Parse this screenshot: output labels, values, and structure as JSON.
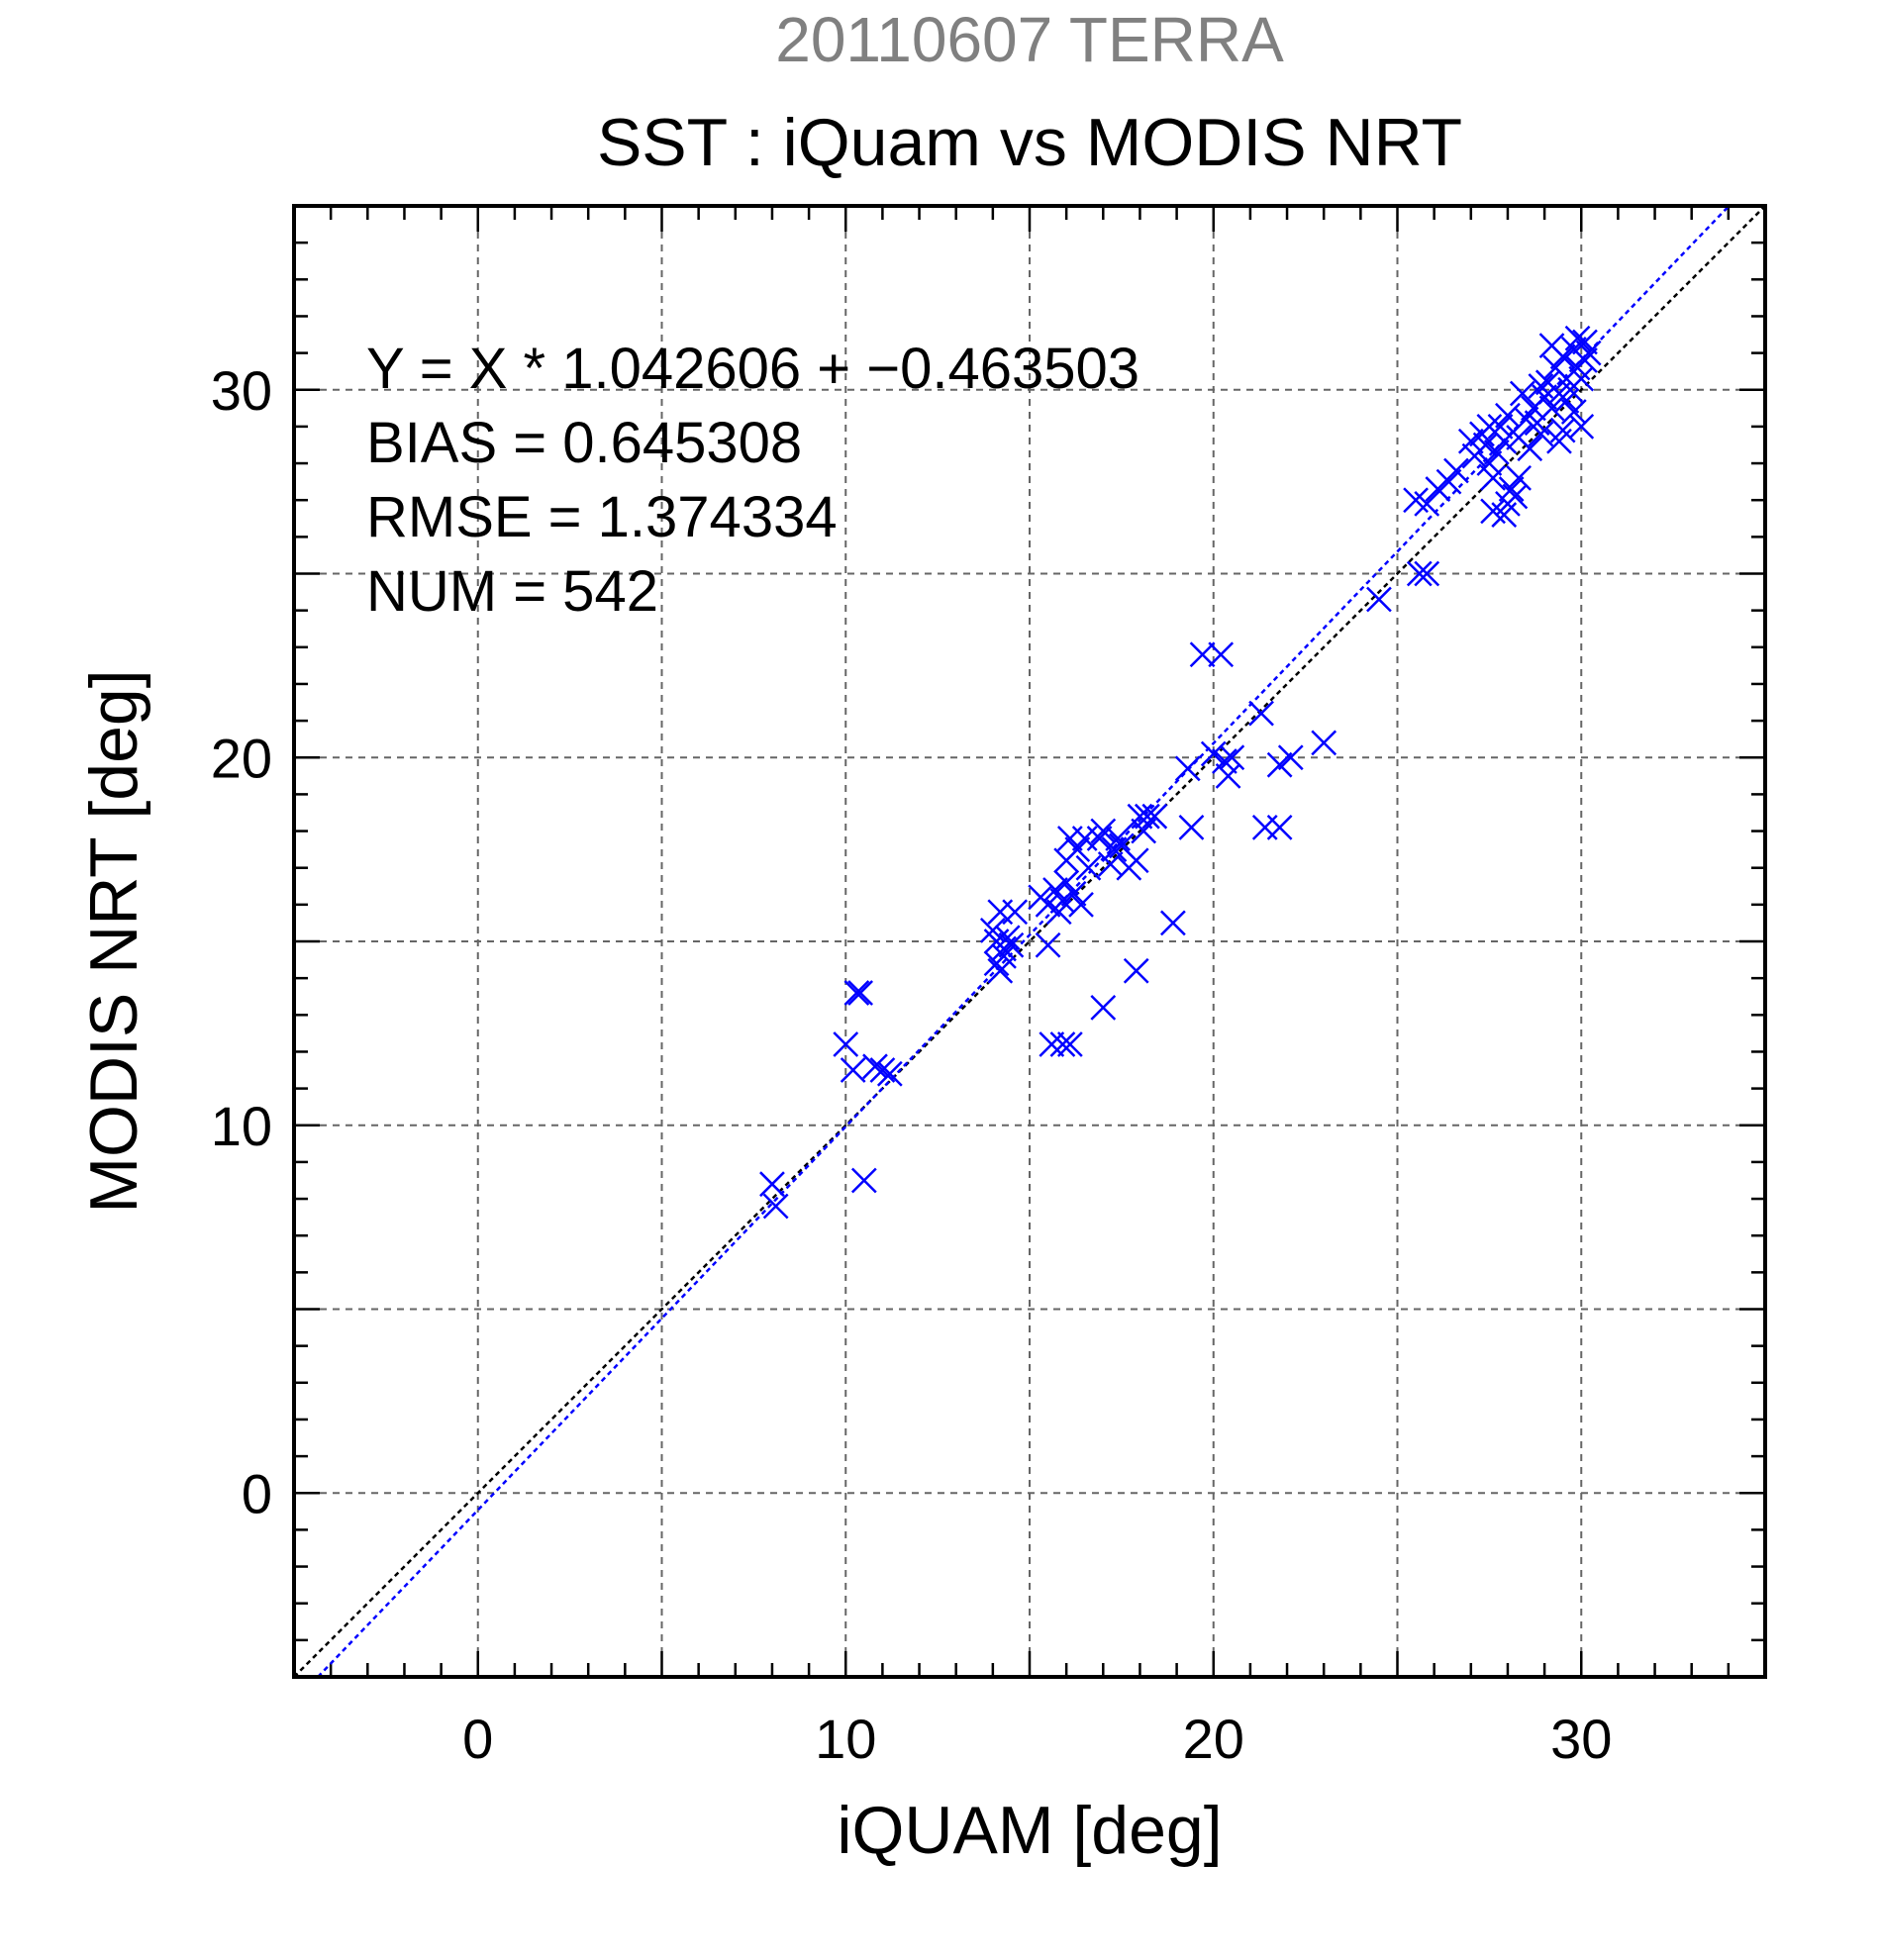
{
  "chart_data": {
    "type": "scatter",
    "title": "20110607 TERRA",
    "subtitle": "SST : iQuam vs MODIS NRT",
    "xlabel": "iQUAM [deg]",
    "ylabel": "MODIS NRT [deg]",
    "xlim": [
      -5,
      35
    ],
    "ylim": [
      -5,
      35
    ],
    "x_ticks": [
      0,
      10,
      20,
      30
    ],
    "y_ticks": [
      0,
      10,
      20,
      30
    ],
    "grid": true,
    "annotations": [
      "Y = X * 1.042606 + −0.463503",
      "BIAS = 0.645308",
      "RMSE = 1.374334",
      "NUM = 542"
    ],
    "reference_lines": [
      {
        "type": "identity",
        "slope": 1,
        "intercept": 0,
        "color": "#000000"
      },
      {
        "type": "fit",
        "slope": 1.042606,
        "intercept": -0.463503,
        "color": "#0000ff"
      }
    ],
    "colors": {
      "points": "#0000ff",
      "title": "#808080",
      "text": "#000000",
      "grid": "#666666"
    },
    "series": [
      {
        "marker": "x",
        "points": [
          [
            8.0,
            8.4
          ],
          [
            8.1,
            7.8
          ],
          [
            10.0,
            12.2
          ],
          [
            10.3,
            13.6
          ],
          [
            10.4,
            13.6
          ],
          [
            10.2,
            11.5
          ],
          [
            10.5,
            8.5
          ],
          [
            10.8,
            11.6
          ],
          [
            11.0,
            11.5
          ],
          [
            11.2,
            11.4
          ],
          [
            14.0,
            15.3
          ],
          [
            14.1,
            15.0
          ],
          [
            14.2,
            15.8
          ],
          [
            14.3,
            14.8
          ],
          [
            14.4,
            15.1
          ],
          [
            14.5,
            14.9
          ],
          [
            14.2,
            14.2
          ],
          [
            14.1,
            14.4
          ],
          [
            14.6,
            15.8
          ],
          [
            14.3,
            14.6
          ],
          [
            15.3,
            16.2
          ],
          [
            15.5,
            16.0
          ],
          [
            15.7,
            16.4
          ],
          [
            15.9,
            16.1
          ],
          [
            16.0,
            16.6
          ],
          [
            16.2,
            16.3
          ],
          [
            16.4,
            16.0
          ],
          [
            15.8,
            15.8
          ],
          [
            15.5,
            14.9
          ],
          [
            15.6,
            12.2
          ],
          [
            15.9,
            12.2
          ],
          [
            16.1,
            12.2
          ],
          [
            16.0,
            17.2
          ],
          [
            16.3,
            17.5
          ],
          [
            16.5,
            17.8
          ],
          [
            16.1,
            17.8
          ],
          [
            16.6,
            17.0
          ],
          [
            16.9,
            17.8
          ],
          [
            17.0,
            18.0
          ],
          [
            17.3,
            17.5
          ],
          [
            17.5,
            17.6
          ],
          [
            17.7,
            17.0
          ],
          [
            17.9,
            17.2
          ],
          [
            17.2,
            17.1
          ],
          [
            17.4,
            17.8
          ],
          [
            17.0,
            13.2
          ],
          [
            17.9,
            14.2
          ],
          [
            18.0,
            18.4
          ],
          [
            18.2,
            18.4
          ],
          [
            18.4,
            18.4
          ],
          [
            18.1,
            18.0
          ],
          [
            18.9,
            15.5
          ],
          [
            19.4,
            18.1
          ],
          [
            19.3,
            19.7
          ],
          [
            20.0,
            20.1
          ],
          [
            20.3,
            19.9
          ],
          [
            20.4,
            19.5
          ],
          [
            20.5,
            20.0
          ],
          [
            19.7,
            22.8
          ],
          [
            20.2,
            22.8
          ],
          [
            21.3,
            21.2
          ],
          [
            21.4,
            18.1
          ],
          [
            21.8,
            18.1
          ],
          [
            21.8,
            19.8
          ],
          [
            22.1,
            20.0
          ],
          [
            23.0,
            20.4
          ],
          [
            24.5,
            24.3
          ],
          [
            25.6,
            25.0
          ],
          [
            25.8,
            25.0
          ],
          [
            25.5,
            27.0
          ],
          [
            25.8,
            26.9
          ],
          [
            26.1,
            27.3
          ],
          [
            26.4,
            27.5
          ],
          [
            26.6,
            27.8
          ],
          [
            27.0,
            28.6
          ],
          [
            27.1,
            28.2
          ],
          [
            27.3,
            28.8
          ],
          [
            27.4,
            28.5
          ],
          [
            27.5,
            28.0
          ],
          [
            27.6,
            27.6
          ],
          [
            27.7,
            28.3
          ],
          [
            27.8,
            29.0
          ],
          [
            27.9,
            28.6
          ],
          [
            27.6,
            26.7
          ],
          [
            27.9,
            26.6
          ],
          [
            28.0,
            26.9
          ],
          [
            28.1,
            27.3
          ],
          [
            28.2,
            27.1
          ],
          [
            28.3,
            27.6
          ],
          [
            28.3,
            28.7
          ],
          [
            28.5,
            29.2
          ],
          [
            28.6,
            28.4
          ],
          [
            28.7,
            29.5
          ],
          [
            28.8,
            29.1
          ],
          [
            28.9,
            28.8
          ],
          [
            29.0,
            29.8
          ],
          [
            29.1,
            30.2
          ],
          [
            29.2,
            29.5
          ],
          [
            29.3,
            30.6
          ],
          [
            29.4,
            29.9
          ],
          [
            29.5,
            30.9
          ],
          [
            29.6,
            30.3
          ],
          [
            29.7,
            30.0
          ],
          [
            29.8,
            31.1
          ],
          [
            29.9,
            30.6
          ],
          [
            30.0,
            30.3
          ],
          [
            30.1,
            31.3
          ],
          [
            30.2,
            31.0
          ],
          [
            29.8,
            29.4
          ],
          [
            29.5,
            28.9
          ],
          [
            29.4,
            28.6
          ],
          [
            30.0,
            29.0
          ],
          [
            29.6,
            29.7
          ],
          [
            29.2,
            31.2
          ],
          [
            30.1,
            30.8
          ],
          [
            28.0,
            29.3
          ],
          [
            28.4,
            29.9
          ],
          [
            27.5,
            29.0
          ],
          [
            28.9,
            30.1
          ],
          [
            29.9,
            31.4
          ]
        ]
      }
    ]
  }
}
